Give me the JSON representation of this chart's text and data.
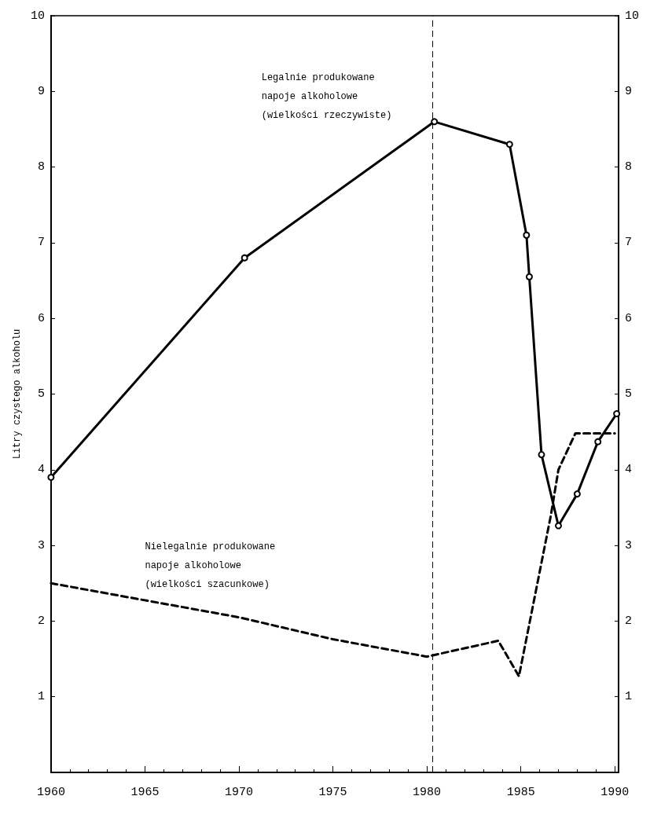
{
  "chart_data": {
    "type": "line",
    "ylabel": "Litry czystego alkoholu",
    "series": [
      {
        "name": "Legalnie produkowane\nnapoje alkoholowe\n(wielkości rzeczywiste)",
        "color": "#000000",
        "line_style": "solid",
        "marker": "circle",
        "x": [
          1960,
          1970.3,
          1980.4,
          1984.4,
          1985.3,
          1985.45,
          1986.1,
          1987.0,
          1988.0,
          1989.1,
          1990.1
        ],
        "values": [
          3.9,
          6.8,
          8.6,
          8.3,
          7.1,
          6.55,
          4.2,
          3.26,
          3.68,
          4.37,
          4.74
        ]
      },
      {
        "name": "Nielegalnie produkowane\nnapoje alkoholowe\n(wielkości szacunkowe)",
        "color": "#000000",
        "line_style": "dashed",
        "marker": "none",
        "x": [
          1960,
          1970,
          1975,
          1980,
          1983.8,
          1984.9,
          1986.6,
          1987.0,
          1987.9,
          1990
        ],
        "values": [
          2.5,
          2.05,
          1.76,
          1.53,
          1.74,
          1.27,
          3.4,
          4.0,
          4.48,
          4.48
        ]
      }
    ],
    "xlim": [
      1960,
      1990.2
    ],
    "xticks": [
      1960,
      1965,
      1970,
      1975,
      1980,
      1985,
      1990
    ],
    "ylim": [
      0,
      10
    ],
    "yticks": [
      1,
      2,
      3,
      4,
      5,
      6,
      7,
      8,
      9,
      10
    ],
    "y2lim": [
      0,
      10
    ],
    "y2ticks": [
      1,
      2,
      3,
      4,
      5,
      6,
      7,
      8,
      9,
      10
    ],
    "ref_lines": [
      {
        "axis": "x",
        "value": 1980.3,
        "color": "#000000",
        "line_style": "dashed"
      }
    ],
    "grid": false,
    "legend": false
  }
}
